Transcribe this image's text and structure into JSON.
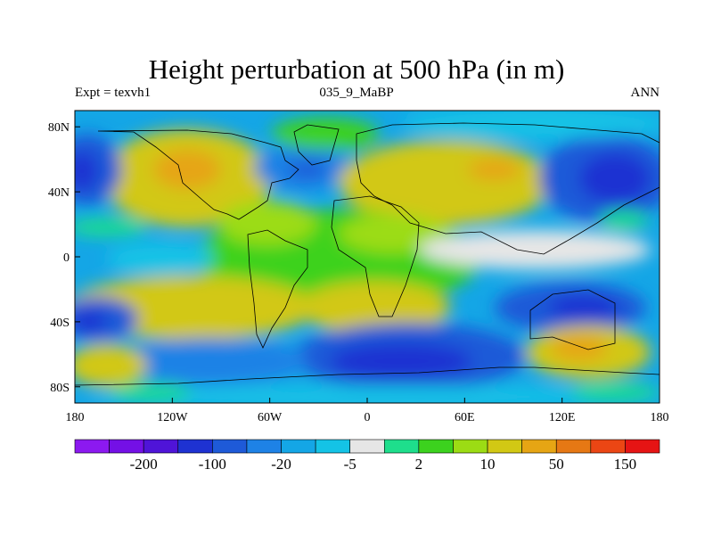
{
  "title": "Height perturbation at 500 hPa (in m)",
  "subtitle_left": "Expt = texvh1",
  "subtitle_center": "035_9_MaBP",
  "subtitle_right": "ANN",
  "map": {
    "lon_ticks": [
      {
        "label": "180",
        "lon": -180
      },
      {
        "label": "120W",
        "lon": -120
      },
      {
        "label": "60W",
        "lon": -60
      },
      {
        "label": "0",
        "lon": 0
      },
      {
        "label": "60E",
        "lon": 60
      },
      {
        "label": "120E",
        "lon": 120
      },
      {
        "label": "180",
        "lon": 180
      }
    ],
    "lat_ticks": [
      {
        "label": "80N",
        "lat": 80
      },
      {
        "label": "40N",
        "lat": 40
      },
      {
        "label": "0",
        "lat": 0
      },
      {
        "label": "40S",
        "lat": -40
      },
      {
        "label": "80S",
        "lat": -80
      }
    ],
    "lon_range": [
      -180,
      180
    ],
    "lat_range": [
      -90,
      90
    ]
  },
  "colorbar": {
    "colors": [
      "#8c19f0",
      "#7410e6",
      "#4f14d8",
      "#1e32d2",
      "#1e5ad8",
      "#1e82e6",
      "#14a6e6",
      "#14c3e6",
      "#e6e6e6",
      "#1ede8c",
      "#3cd21e",
      "#9cdc14",
      "#d2c814",
      "#e6a514",
      "#e67814",
      "#eb4614",
      "#e61414"
    ],
    "labels": [
      {
        "text": "-200",
        "after_index": 1
      },
      {
        "text": "-100",
        "after_index": 3
      },
      {
        "text": "-20",
        "after_index": 5
      },
      {
        "text": "-5",
        "after_index": 7
      },
      {
        "text": "2",
        "after_index": 9
      },
      {
        "text": "10",
        "after_index": 11
      },
      {
        "text": "50",
        "after_index": 13
      },
      {
        "text": "150",
        "after_index": 15
      }
    ]
  }
}
